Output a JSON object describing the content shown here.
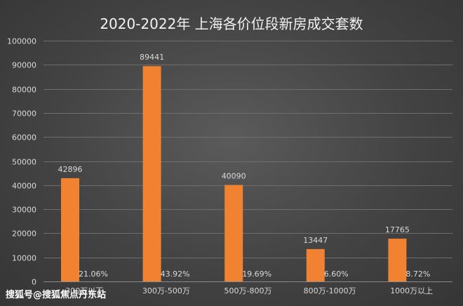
{
  "chart_data": {
    "type": "bar",
    "title": "2020-2022年 上海各价位段新房成交套数",
    "categories": [
      "300万以下",
      "300万-500万",
      "500万-800万",
      "800万-1000万",
      "1000万以上"
    ],
    "values": [
      42896,
      89441,
      40090,
      13447,
      17765
    ],
    "value_labels": [
      "42896",
      "89441",
      "40090",
      "13447",
      "17765"
    ],
    "percent_labels": [
      "21.06%",
      "43.92%",
      "19.69%",
      "6.60%",
      "8.72%"
    ],
    "ylim": [
      0,
      100000
    ],
    "yticks": [
      0,
      10000,
      20000,
      30000,
      40000,
      50000,
      60000,
      70000,
      80000,
      90000,
      100000
    ],
    "ytick_labels": [
      "0",
      "10000",
      "20000",
      "30000",
      "40000",
      "50000",
      "60000",
      "70000",
      "80000",
      "90000",
      "100000"
    ],
    "grid": true,
    "legend": "none",
    "bar_color": "#f08232",
    "background_color": "#434343"
  },
  "watermark": {
    "text": "搜狐号@搜狐焦点丹东站"
  }
}
